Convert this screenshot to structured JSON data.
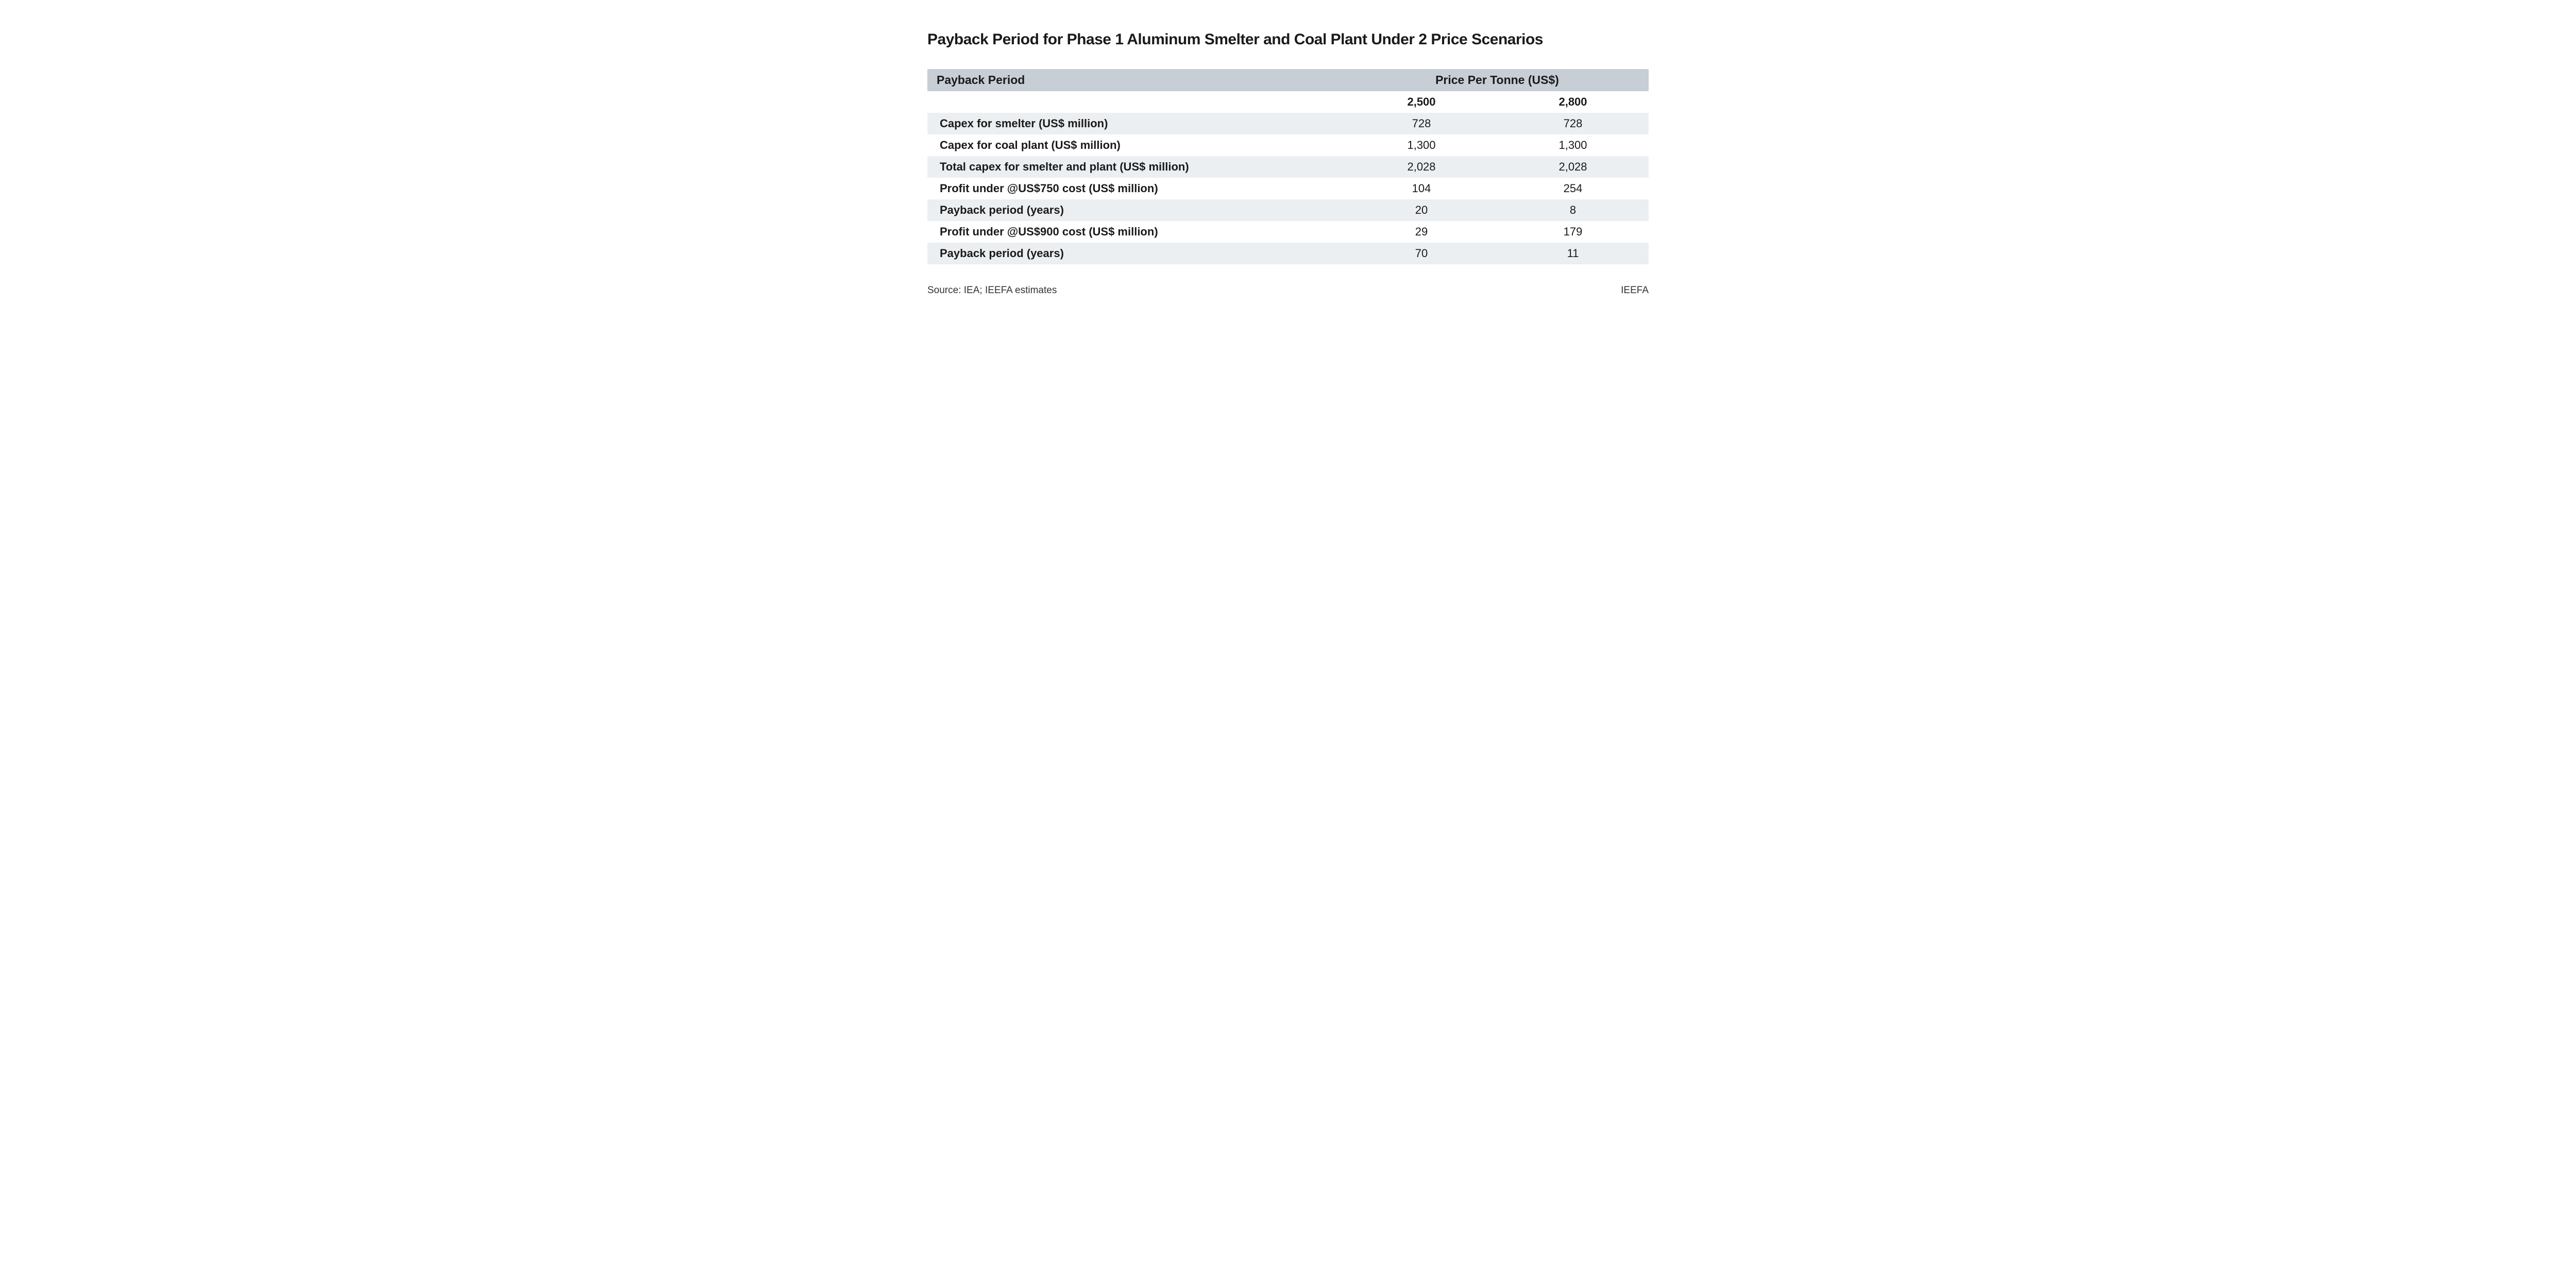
{
  "title": "Payback Period for Phase 1 Aluminum Smelter and Coal Plant Under 2 Price Scenarios",
  "table": {
    "type": "table",
    "header_row_bg": "#c8ced6",
    "stripe_bg": "#eceff2",
    "text_color": "#1a1a1a",
    "header_label": "Payback Period",
    "header_price_label": "Price Per Tonne (US$)",
    "subheader_values": [
      "2,500",
      "2,800"
    ],
    "columns_layout": {
      "label_col_pct": 58,
      "val_col_pct": 21
    },
    "fontsize_body": 22,
    "fontsize_header": 23,
    "rows": [
      {
        "label": "Capex for smelter (US$ million)",
        "v1": "728",
        "v2": "728",
        "stripe": true
      },
      {
        "label": "Capex for coal plant (US$ million)",
        "v1": "1,300",
        "v2": "1,300",
        "stripe": false
      },
      {
        "label": "Total capex for smelter and plant (US$ million)",
        "v1": "2,028",
        "v2": "2,028",
        "stripe": true
      },
      {
        "label": "Profit under @US$750 cost (US$ million)",
        "v1": "104",
        "v2": "254",
        "stripe": false
      },
      {
        "label": "Payback period (years)",
        "v1": "20",
        "v2": "8",
        "stripe": true
      },
      {
        "label": "Profit under @US$900 cost (US$ million)",
        "v1": "29",
        "v2": "179",
        "stripe": false
      },
      {
        "label": "Payback period (years)",
        "v1": "70",
        "v2": "11",
        "stripe": true
      }
    ]
  },
  "footer": {
    "source": "Source: IEA; IEEFA estimates",
    "brand": "IEEFA"
  }
}
